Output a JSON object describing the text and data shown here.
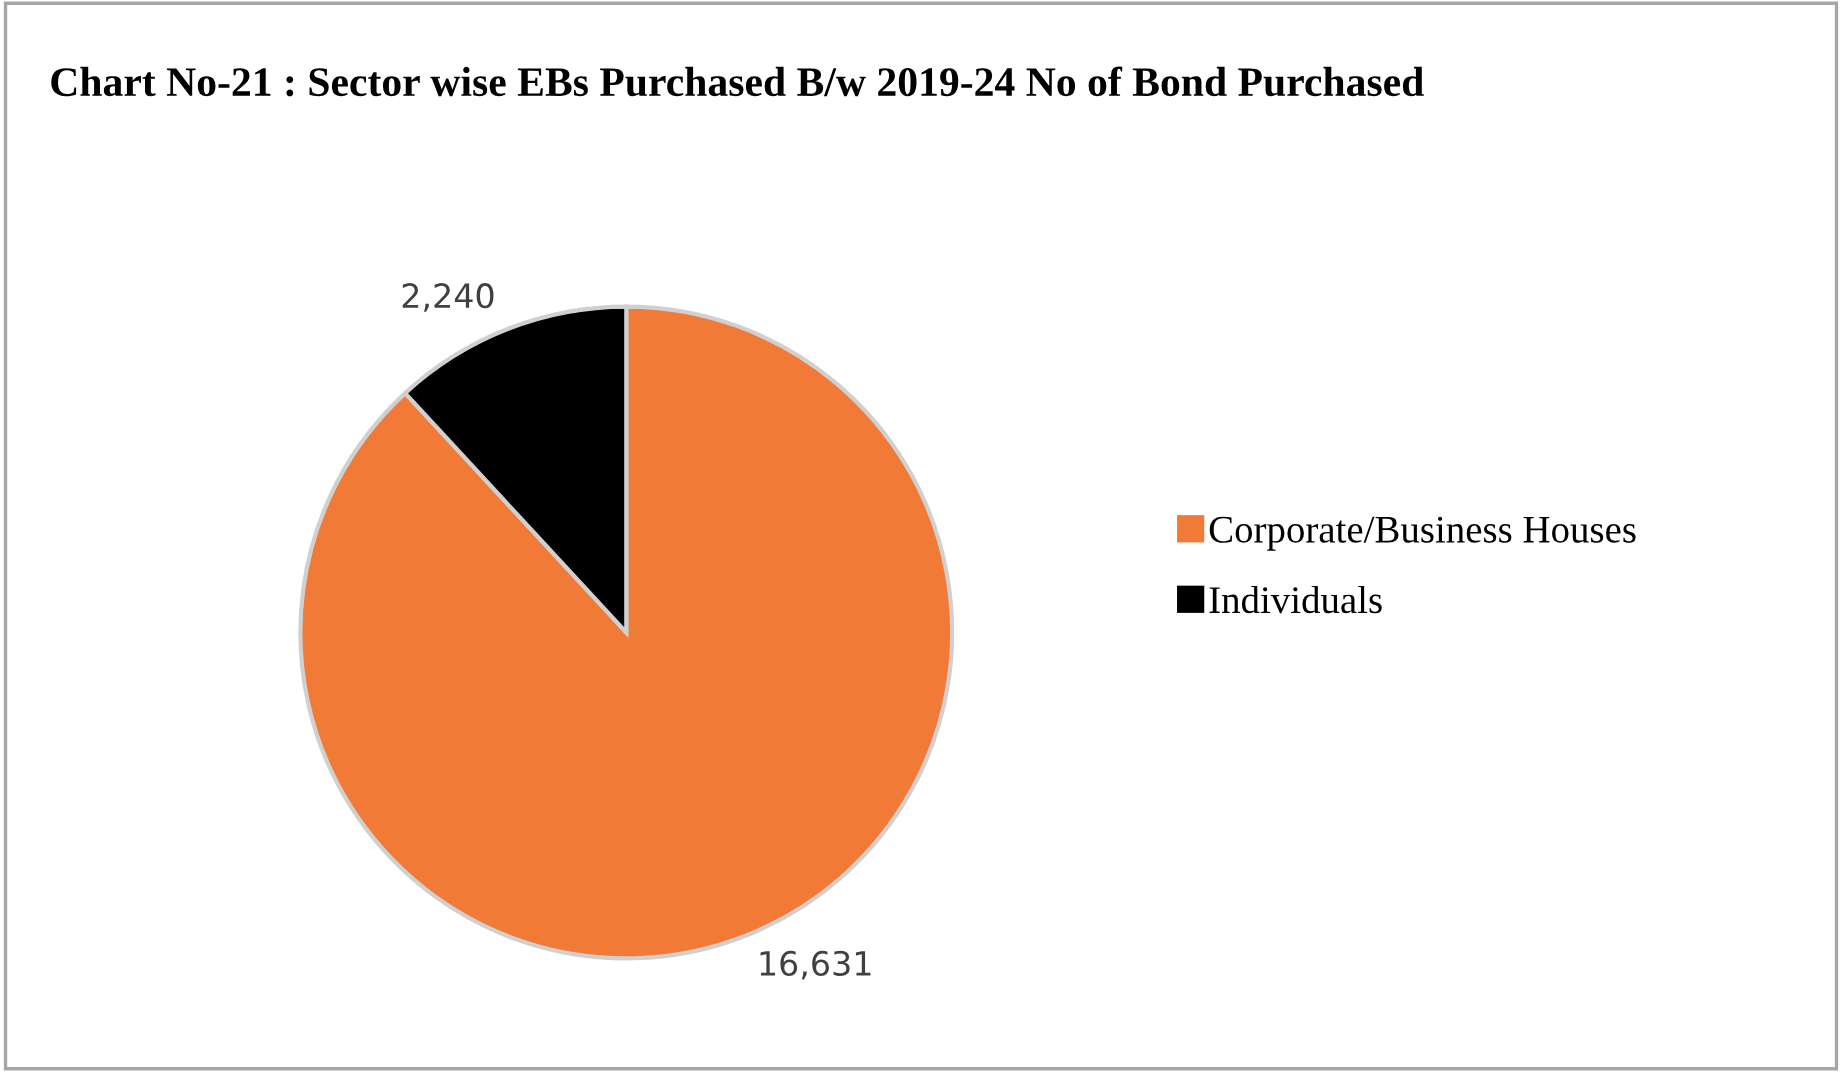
{
  "chart_data": {
    "type": "pie",
    "title": "Chart No-21 : Sector wise EBs Purchased B/w 2019-24 No of Bond Purchased",
    "categories": [
      "Corporate/Business Houses",
      "Individuals"
    ],
    "values": [
      16631,
      2240
    ],
    "colors": [
      "#f07a36",
      "#000000"
    ],
    "value_labels": [
      "16,631",
      "2,240"
    ],
    "legend": "right"
  }
}
